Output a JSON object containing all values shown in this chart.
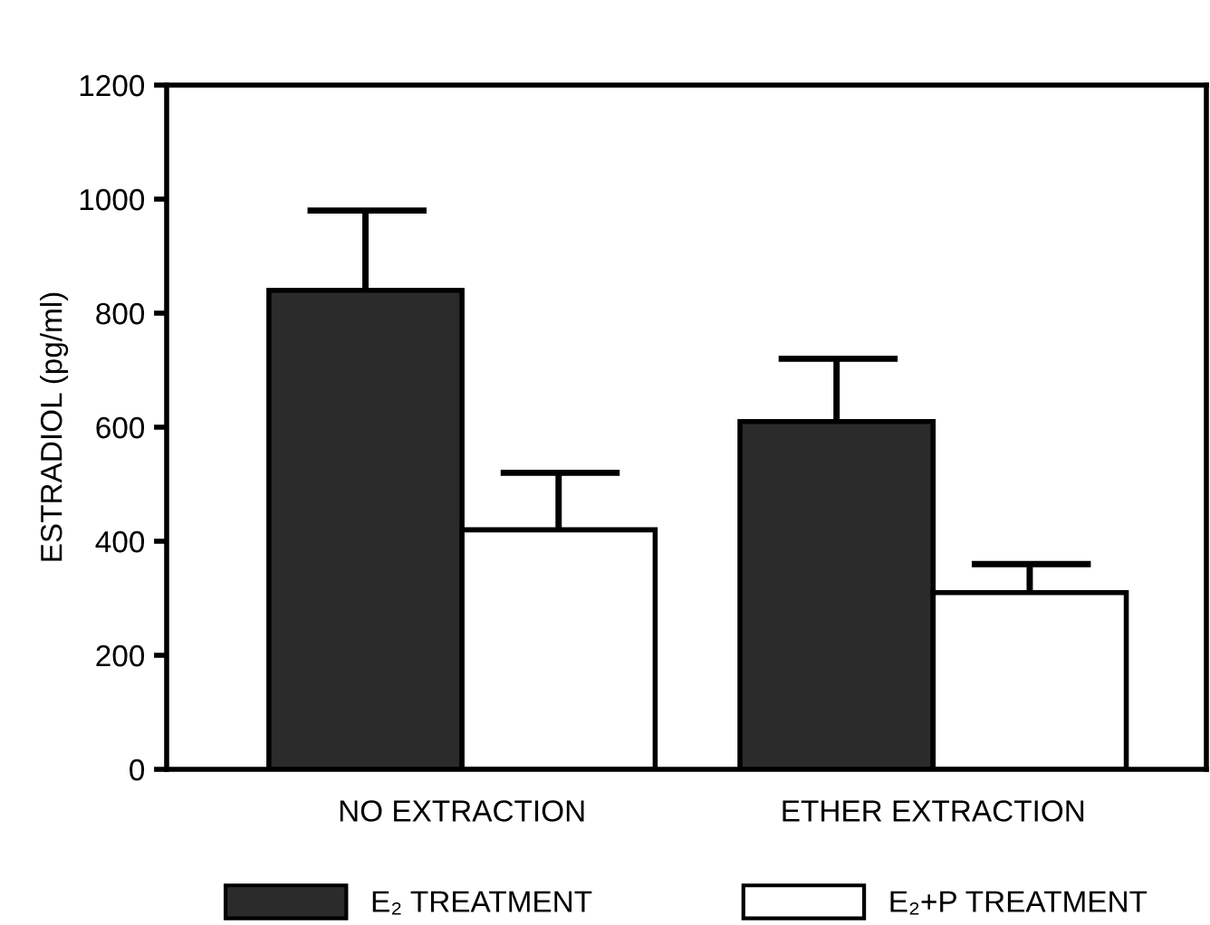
{
  "chart_data": {
    "type": "bar",
    "ylabel": "ESTRADIOL (pg/ml)",
    "categories": [
      "NO EXTRACTION",
      "ETHER EXTRACTION"
    ],
    "series": [
      {
        "name": "E₂ TREATMENT",
        "color": "#2b2b2b",
        "values": [
          840,
          610
        ],
        "errors": [
          [
            840,
            980
          ],
          [
            610,
            720
          ]
        ]
      },
      {
        "name": "E₂+P TREATMENT",
        "color": "#ffffff",
        "values": [
          420,
          310
        ],
        "errors": [
          [
            420,
            520
          ],
          [
            310,
            360
          ]
        ]
      }
    ],
    "ylim": [
      0,
      1200
    ],
    "yticks": [
      0,
      200,
      400,
      600,
      800,
      1000,
      1200
    ],
    "grid": false,
    "legend": "bottom"
  }
}
